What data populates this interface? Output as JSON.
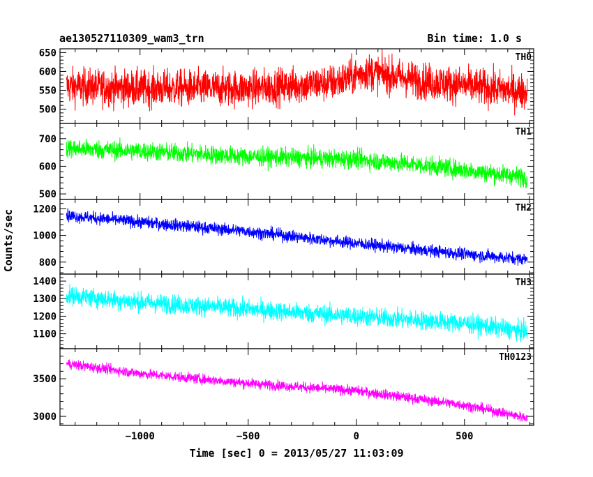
{
  "header": {
    "title": "ae130527110309_wam3_trn",
    "bin_time": "Bin time: 1.0 s"
  },
  "chart_data": {
    "type": "line",
    "title": "ae130527110309_wam3_trn",
    "xlabel": "Time [sec] 0 = 2013/05/27 11:03:09",
    "ylabel": "Counts/sec",
    "xlim": [
      -1370,
      820
    ],
    "x_range": [
      -1340,
      790
    ],
    "x_ticks": [
      -1000,
      -500,
      0,
      500
    ],
    "x_tick_labels": [
      "−1000",
      "−500",
      "0",
      "500"
    ],
    "noise_note": "dense 1-second binned light curves",
    "series": [
      {
        "name": "TH0",
        "color": "#ff0000",
        "ylim": [
          462,
          660
        ],
        "y_ticks": [
          500,
          550,
          600,
          650
        ],
        "y_tick_labels": [
          "500",
          "550",
          "600",
          "650"
        ],
        "trend": [
          [
            -1340,
            560
          ],
          [
            -1000,
            555
          ],
          [
            -500,
            555
          ],
          [
            -100,
            570
          ],
          [
            50,
            600
          ],
          [
            300,
            575
          ],
          [
            790,
            545
          ]
        ],
        "noise": 40
      },
      {
        "name": "TH1",
        "color": "#00ff00",
        "ylim": [
          480,
          755
        ],
        "y_ticks": [
          500,
          600,
          700
        ],
        "y_tick_labels": [
          "500",
          "600",
          "700"
        ],
        "trend": [
          [
            -1340,
            665
          ],
          [
            -1000,
            655
          ],
          [
            -500,
            635
          ],
          [
            0,
            625
          ],
          [
            300,
            605
          ],
          [
            790,
            560
          ]
        ],
        "noise": 28
      },
      {
        "name": "TH2",
        "color": "#0000ff",
        "ylim": [
          710,
          1270
        ],
        "y_ticks": [
          800,
          1000,
          1200
        ],
        "y_tick_labels": [
          "800",
          "1000",
          "1200"
        ],
        "trend": [
          [
            -1340,
            1150
          ],
          [
            -1000,
            1100
          ],
          [
            -500,
            1030
          ],
          [
            0,
            940
          ],
          [
            500,
            860
          ],
          [
            790,
            820
          ]
        ],
        "noise": 38
      },
      {
        "name": "TH3",
        "color": "#00ffff",
        "ylim": [
          1015,
          1440
        ],
        "y_ticks": [
          1100,
          1200,
          1300,
          1400
        ],
        "y_tick_labels": [
          "1100",
          "1200",
          "1300",
          "1400"
        ],
        "trend": [
          [
            -1340,
            1320
          ],
          [
            -1000,
            1280
          ],
          [
            -500,
            1240
          ],
          [
            0,
            1200
          ],
          [
            500,
            1160
          ],
          [
            790,
            1110
          ]
        ],
        "noise": 45
      },
      {
        "name": "TH0123",
        "color": "#ff00ff",
        "ylim": [
          2880,
          3900
        ],
        "y_ticks": [
          3000,
          3500
        ],
        "y_tick_labels": [
          "3000",
          "3500"
        ],
        "trend": [
          [
            -1340,
            3700
          ],
          [
            -1000,
            3570
          ],
          [
            -500,
            3440
          ],
          [
            0,
            3340
          ],
          [
            500,
            3150
          ],
          [
            790,
            2980
          ]
        ],
        "noise": 55
      }
    ]
  }
}
